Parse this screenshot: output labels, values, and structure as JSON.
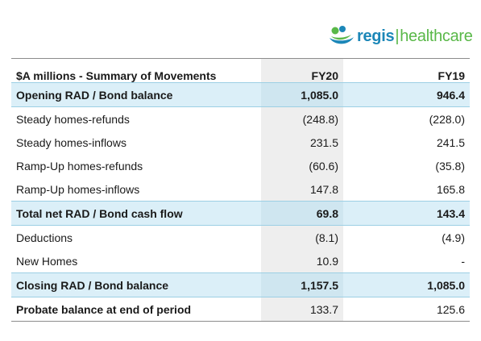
{
  "logo": {
    "part1": "regis",
    "separator": "|",
    "part2": "healthcare"
  },
  "colors": {
    "highlight_row": "#dbeff8",
    "fy20_column": "#eeeeee",
    "logo_blue": "#1c87b8",
    "logo_green": "#59b848"
  },
  "table": {
    "header": {
      "label": "$A millions - Summary of Movements",
      "fy20": "FY20",
      "fy19": "FY19"
    },
    "rows": [
      {
        "label": "Opening RAD / Bond balance",
        "fy20": "1,085.0",
        "fy19": "946.4"
      },
      {
        "label": "Steady homes-refunds",
        "fy20": "(248.8)",
        "fy19": "(228.0)"
      },
      {
        "label": "Steady homes-inflows",
        "fy20": "231.5",
        "fy19": "241.5"
      },
      {
        "label": "Ramp-Up homes-refunds",
        "fy20": "(60.6)",
        "fy19": "(35.8)"
      },
      {
        "label": "Ramp-Up homes-inflows",
        "fy20": "147.8",
        "fy19": "165.8"
      },
      {
        "label": "Total net RAD / Bond cash flow",
        "fy20": "69.8",
        "fy19": "143.4"
      },
      {
        "label": "Deductions",
        "fy20": "(8.1)",
        "fy19": "(4.9)"
      },
      {
        "label": "New Homes",
        "fy20": "10.9",
        "fy19": "-"
      },
      {
        "label": "Closing RAD / Bond balance",
        "fy20": "1,157.5",
        "fy19": "1,085.0"
      },
      {
        "label": "Probate balance at end of period",
        "fy20": "133.7",
        "fy19": "125.6"
      }
    ]
  }
}
